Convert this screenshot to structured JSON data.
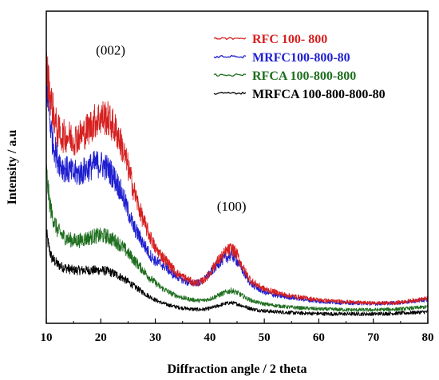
{
  "chart_data": {
    "type": "line",
    "xlabel": "Diffraction angle / 2 theta",
    "ylabel": "Intensity / a.u",
    "xlim": [
      10,
      80
    ],
    "x_ticks": [
      "10",
      "20",
      "30",
      "40",
      "50",
      "60",
      "70",
      "80"
    ],
    "ylim": [
      0,
      100
    ],
    "legend_position": "top-right",
    "annotations": [
      {
        "text": "(002)",
        "x": 21.8,
        "y": 86
      },
      {
        "text": "(100)",
        "x": 44,
        "y": 36
      }
    ],
    "series": [
      {
        "name": "RFC 100- 800",
        "color": "#d62020",
        "x": [
          10,
          10.5,
          11,
          12,
          13,
          14,
          15,
          16,
          17,
          18,
          19,
          20,
          21,
          22,
          23,
          24,
          25,
          26,
          27,
          28,
          29,
          30,
          31,
          32,
          33,
          34,
          35,
          36,
          37,
          38,
          39,
          40,
          41,
          42,
          43,
          44,
          45,
          46,
          47,
          48,
          49,
          50,
          52,
          54,
          56,
          58,
          60,
          62,
          64,
          66,
          68,
          70,
          72,
          74,
          76,
          78,
          80
        ],
        "y": [
          82,
          76,
          70,
          62,
          60,
          60,
          59,
          60,
          61,
          63,
          65,
          66,
          66,
          64,
          61,
          56,
          50,
          43,
          37,
          32,
          28,
          24,
          22,
          20,
          18,
          16,
          15,
          14,
          13,
          13,
          14,
          16,
          19,
          21,
          23,
          24,
          22,
          18,
          15,
          13,
          12,
          11,
          10,
          9,
          8.5,
          8,
          7.5,
          7.2,
          7,
          6.8,
          6.6,
          6.5,
          6.5,
          6.6,
          7,
          7.5,
          8
        ]
      },
      {
        "name": "MRFC100-800-80",
        "color": "#1f1fd0",
        "x": [
          10,
          10.5,
          11,
          12,
          13,
          14,
          15,
          16,
          17,
          18,
          19,
          20,
          21,
          22,
          23,
          24,
          25,
          26,
          27,
          28,
          29,
          30,
          31,
          32,
          33,
          34,
          35,
          36,
          37,
          38,
          39,
          40,
          41,
          42,
          43,
          44,
          45,
          46,
          47,
          48,
          49,
          50,
          52,
          54,
          56,
          58,
          60,
          62,
          64,
          66,
          68,
          70,
          72,
          74,
          76,
          78,
          80
        ],
        "y": [
          78,
          68,
          60,
          53,
          50,
          49,
          48,
          48,
          49,
          50,
          51,
          51,
          50,
          48,
          45,
          41,
          36,
          31,
          28,
          25,
          22,
          20,
          19,
          18,
          16,
          15,
          14,
          13,
          13,
          13,
          14,
          16,
          18,
          20,
          21,
          22,
          20,
          17,
          14,
          12,
          11,
          10,
          9,
          8.5,
          8,
          7.5,
          7,
          6.8,
          6.6,
          6.5,
          6.4,
          6.3,
          6.4,
          6.5,
          6.8,
          7.2,
          7.5
        ]
      },
      {
        "name": "RFCA 100-800-800",
        "color": "#1e6e1e",
        "x": [
          10,
          10.5,
          11,
          12,
          13,
          14,
          15,
          16,
          17,
          18,
          19,
          20,
          21,
          22,
          23,
          24,
          25,
          26,
          27,
          28,
          29,
          30,
          31,
          32,
          33,
          34,
          35,
          36,
          37,
          38,
          39,
          40,
          41,
          42,
          43,
          44,
          45,
          46,
          47,
          48,
          49,
          50,
          52,
          54,
          56,
          58,
          60,
          62,
          64,
          66,
          68,
          70,
          72,
          74,
          76,
          78,
          80
        ],
        "y": [
          49,
          40,
          35,
          30,
          28,
          27,
          26.5,
          26.5,
          27,
          27.5,
          28,
          28,
          28,
          27,
          26,
          24.5,
          22.5,
          20.5,
          18.5,
          16.5,
          14.5,
          13,
          11.5,
          10.5,
          9.5,
          8.8,
          8.2,
          7.8,
          7.5,
          7.3,
          7.4,
          7.8,
          8.5,
          9.3,
          10,
          10.5,
          9.8,
          8.8,
          7.8,
          7.1,
          6.6,
          6.2,
          5.7,
          5.3,
          5,
          4.8,
          4.6,
          4.5,
          4.4,
          4.3,
          4.3,
          4.3,
          4.4,
          4.5,
          4.7,
          5,
          5.3
        ]
      },
      {
        "name": "MRFCA 100-800-800-80",
        "color": "#000000",
        "x": [
          10,
          10.5,
          11,
          12,
          13,
          14,
          15,
          16,
          17,
          18,
          19,
          20,
          21,
          22,
          23,
          24,
          25,
          26,
          27,
          28,
          29,
          30,
          31,
          32,
          33,
          34,
          35,
          36,
          37,
          38,
          39,
          40,
          41,
          42,
          43,
          44,
          45,
          46,
          47,
          48,
          49,
          50,
          52,
          54,
          56,
          58,
          60,
          62,
          64,
          66,
          68,
          70,
          72,
          74,
          76,
          78,
          80
        ],
        "y": [
          29,
          24,
          21,
          19,
          18,
          17.5,
          17,
          17,
          17,
          17,
          17,
          17,
          16.8,
          16.2,
          15.5,
          14.5,
          13.3,
          12,
          10.8,
          9.6,
          8.5,
          7.5,
          6.7,
          6.1,
          5.6,
          5.2,
          4.9,
          4.7,
          4.5,
          4.4,
          4.5,
          4.8,
          5.3,
          5.9,
          6.4,
          6.6,
          6.2,
          5.6,
          5,
          4.5,
          4.2,
          4,
          3.7,
          3.5,
          3.3,
          3.2,
          3.1,
          3,
          3,
          3,
          3,
          3,
          3.1,
          3.2,
          3.3,
          3.5,
          3.7
        ]
      }
    ]
  }
}
